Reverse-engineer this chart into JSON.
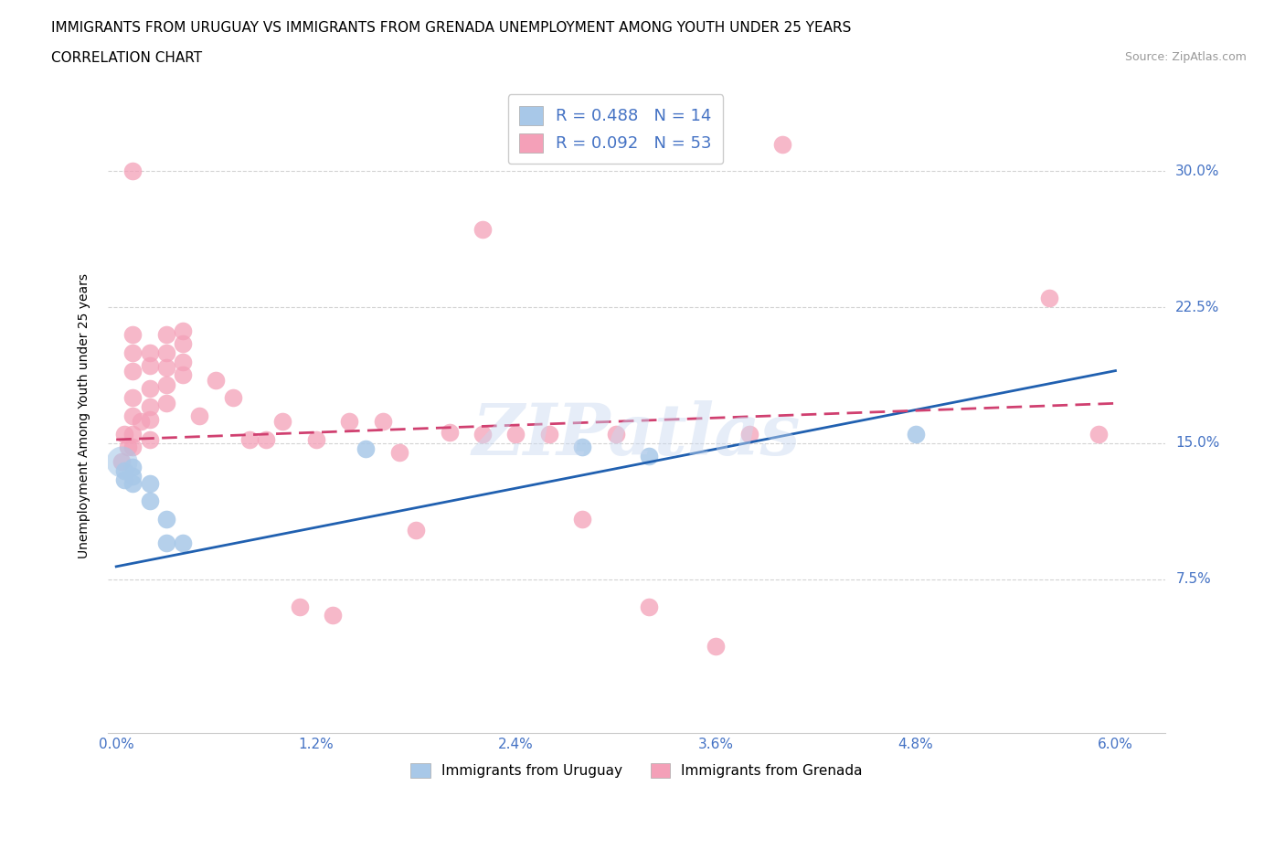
{
  "title_line1": "IMMIGRANTS FROM URUGUAY VS IMMIGRANTS FROM GRENADA UNEMPLOYMENT AMONG YOUTH UNDER 25 YEARS",
  "title_line2": "CORRELATION CHART",
  "source_text": "Source: ZipAtlas.com",
  "ylabel": "Unemployment Among Youth under 25 years",
  "xlim": [
    -0.0005,
    0.063
  ],
  "ylim": [
    -0.01,
    0.34
  ],
  "yticks": [
    0.075,
    0.15,
    0.225,
    0.3
  ],
  "ytick_labels": [
    "7.5%",
    "15.0%",
    "22.5%",
    "30.0%"
  ],
  "xticks": [
    0.0,
    0.012,
    0.024,
    0.036,
    0.048,
    0.06
  ],
  "xtick_labels": [
    "0.0%",
    "1.2%",
    "2.4%",
    "3.6%",
    "4.8%",
    "6.0%"
  ],
  "watermark": "ZIPatlas",
  "legend_r1": "R = 0.488   N = 14",
  "legend_r2": "R = 0.092   N = 53",
  "legend_label1": "Immigrants from Uruguay",
  "legend_label2": "Immigrants from Grenada",
  "color_uruguay": "#a8c8e8",
  "color_grenada": "#f4a0b8",
  "color_line_uruguay": "#2060b0",
  "color_line_grenada": "#d04070",
  "uruguay_x": [
    0.0005,
    0.0005,
    0.001,
    0.001,
    0.001,
    0.002,
    0.002,
    0.003,
    0.003,
    0.004,
    0.015,
    0.028,
    0.032,
    0.048
  ],
  "uruguay_y": [
    0.135,
    0.13,
    0.137,
    0.132,
    0.128,
    0.128,
    0.118,
    0.108,
    0.095,
    0.095,
    0.147,
    0.148,
    0.143,
    0.155
  ],
  "grenada_x": [
    0.0003,
    0.0005,
    0.0007,
    0.001,
    0.001,
    0.001,
    0.001,
    0.001,
    0.001,
    0.001,
    0.001,
    0.0015,
    0.002,
    0.002,
    0.002,
    0.002,
    0.002,
    0.002,
    0.003,
    0.003,
    0.003,
    0.003,
    0.003,
    0.004,
    0.004,
    0.004,
    0.004,
    0.005,
    0.006,
    0.007,
    0.008,
    0.009,
    0.01,
    0.011,
    0.012,
    0.013,
    0.014,
    0.016,
    0.017,
    0.018,
    0.02,
    0.022,
    0.022,
    0.024,
    0.026,
    0.028,
    0.03,
    0.032,
    0.036,
    0.038,
    0.04,
    0.056,
    0.059
  ],
  "grenada_y": [
    0.14,
    0.155,
    0.148,
    0.3,
    0.21,
    0.2,
    0.19,
    0.175,
    0.165,
    0.155,
    0.148,
    0.162,
    0.2,
    0.193,
    0.18,
    0.17,
    0.163,
    0.152,
    0.21,
    0.2,
    0.192,
    0.182,
    0.172,
    0.212,
    0.205,
    0.195,
    0.188,
    0.165,
    0.185,
    0.175,
    0.152,
    0.152,
    0.162,
    0.06,
    0.152,
    0.055,
    0.162,
    0.162,
    0.145,
    0.102,
    0.156,
    0.268,
    0.155,
    0.155,
    0.155,
    0.108,
    0.155,
    0.06,
    0.038,
    0.155,
    0.315,
    0.23,
    0.155
  ],
  "title_fontsize": 11,
  "axis_label_fontsize": 10,
  "tick_fontsize": 11,
  "background_color": "#ffffff",
  "grid_color": "#c8c8c8",
  "grid_linestyle": "--",
  "grid_alpha": 0.8,
  "line_start_x": 0.0,
  "line_end_x": 0.06,
  "blue_line_y0": 0.082,
  "blue_line_y1": 0.19,
  "pink_line_y0": 0.152,
  "pink_line_y1": 0.172
}
